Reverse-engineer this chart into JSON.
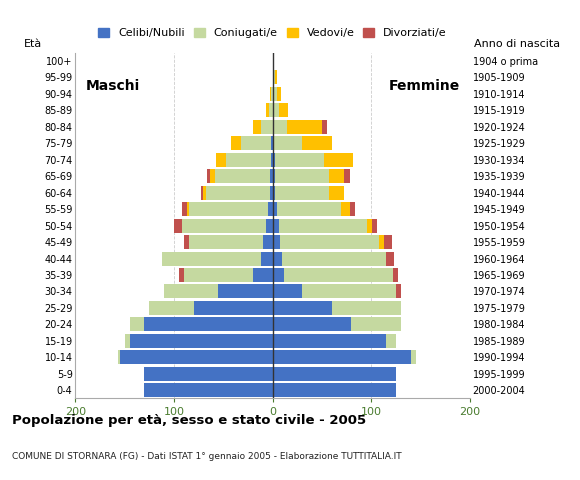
{
  "age_groups": [
    "0-4",
    "5-9",
    "10-14",
    "15-19",
    "20-24",
    "25-29",
    "30-34",
    "35-39",
    "40-44",
    "45-49",
    "50-54",
    "55-59",
    "60-64",
    "65-69",
    "70-74",
    "75-79",
    "80-84",
    "85-89",
    "90-94",
    "95-99",
    "100+"
  ],
  "birth_years": [
    "2000-2004",
    "1995-1999",
    "1990-1994",
    "1985-1989",
    "1980-1984",
    "1975-1979",
    "1970-1974",
    "1965-1969",
    "1960-1964",
    "1955-1959",
    "1950-1954",
    "1945-1949",
    "1940-1944",
    "1935-1939",
    "1930-1934",
    "1925-1929",
    "1920-1924",
    "1915-1919",
    "1910-1914",
    "1905-1909",
    "1904 o prima"
  ],
  "males": {
    "celibe": [
      130,
      130,
      155,
      145,
      130,
      80,
      55,
      20,
      12,
      10,
      7,
      5,
      3,
      3,
      2,
      2,
      0,
      0,
      0,
      0,
      0
    ],
    "coniugato": [
      0,
      0,
      2,
      5,
      15,
      45,
      55,
      70,
      100,
      75,
      85,
      80,
      65,
      55,
      45,
      30,
      12,
      4,
      2,
      0,
      0
    ],
    "vedovo": [
      0,
      0,
      0,
      0,
      0,
      0,
      0,
      0,
      0,
      0,
      0,
      2,
      3,
      5,
      10,
      10,
      8,
      3,
      1,
      0,
      0
    ],
    "divorziato": [
      0,
      0,
      0,
      0,
      0,
      0,
      0,
      5,
      0,
      5,
      8,
      5,
      2,
      4,
      0,
      0,
      0,
      0,
      0,
      0,
      0
    ]
  },
  "females": {
    "nubile": [
      125,
      125,
      140,
      115,
      80,
      60,
      30,
      12,
      10,
      8,
      6,
      4,
      2,
      2,
      2,
      0,
      0,
      0,
      0,
      0,
      0
    ],
    "coniugata": [
      0,
      0,
      5,
      10,
      50,
      70,
      95,
      110,
      105,
      100,
      90,
      65,
      55,
      55,
      50,
      30,
      15,
      6,
      4,
      2,
      0
    ],
    "vedova": [
      0,
      0,
      0,
      0,
      0,
      0,
      0,
      0,
      0,
      5,
      5,
      10,
      15,
      15,
      30,
      30,
      35,
      10,
      5,
      2,
      0
    ],
    "divorziata": [
      0,
      0,
      0,
      0,
      0,
      0,
      5,
      5,
      8,
      8,
      5,
      5,
      0,
      7,
      0,
      0,
      5,
      0,
      0,
      0,
      0
    ]
  },
  "colors": {
    "celibe": "#4472c4",
    "coniugato": "#c5d9a0",
    "vedovo": "#ffc000",
    "divorziato": "#c0504d"
  },
  "title": "Popolazione per età, sesso e stato civile - 2005",
  "subtitle": "COMUNE DI STORNARA (FG) - Dati ISTAT 1° gennaio 2005 - Elaborazione TUTTITALIA.IT",
  "xlabel_left": "Maschi",
  "xlabel_right": "Femmine",
  "ylabel_left": "Età",
  "ylabel_right": "Anno di nascita",
  "xlim": 200,
  "bg_color": "#ffffff",
  "legend_labels": [
    "Celibi/Nubili",
    "Coniugati/e",
    "Vedovi/e",
    "Divorziati/e"
  ]
}
